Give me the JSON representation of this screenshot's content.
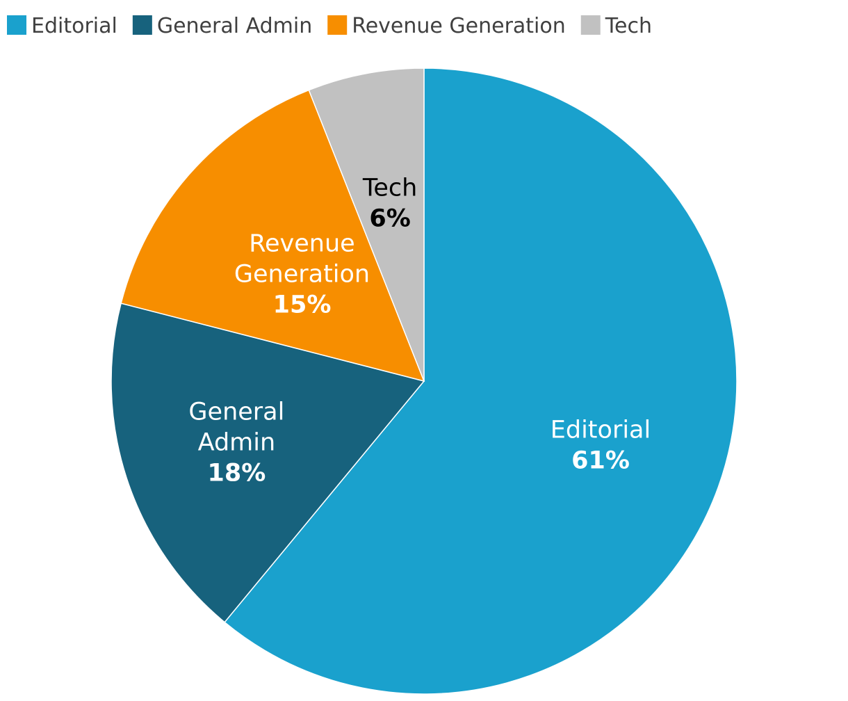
{
  "chart_data": {
    "type": "pie",
    "legend_position": "top",
    "start_angle_deg": 0,
    "direction": "clockwise",
    "slices": [
      {
        "name": "Editorial",
        "label_lines": [
          "Editorial"
        ],
        "value": 61,
        "label": "61%",
        "color": "#1aa1cd",
        "label_color": "#ffffff"
      },
      {
        "name": "General Admin",
        "label_lines": [
          "General",
          "Admin"
        ],
        "value": 18,
        "label": "18%",
        "color": "#17627d",
        "label_color": "#ffffff"
      },
      {
        "name": "Revenue Generation",
        "label_lines": [
          "Revenue",
          "Generation"
        ],
        "value": 15,
        "label": "15%",
        "color": "#f78e00",
        "label_color": "#ffffff"
      },
      {
        "name": "Tech",
        "label_lines": [
          "Tech"
        ],
        "value": 6,
        "label": "6%",
        "color": "#c1c1c1",
        "label_color": "#000000"
      }
    ]
  }
}
